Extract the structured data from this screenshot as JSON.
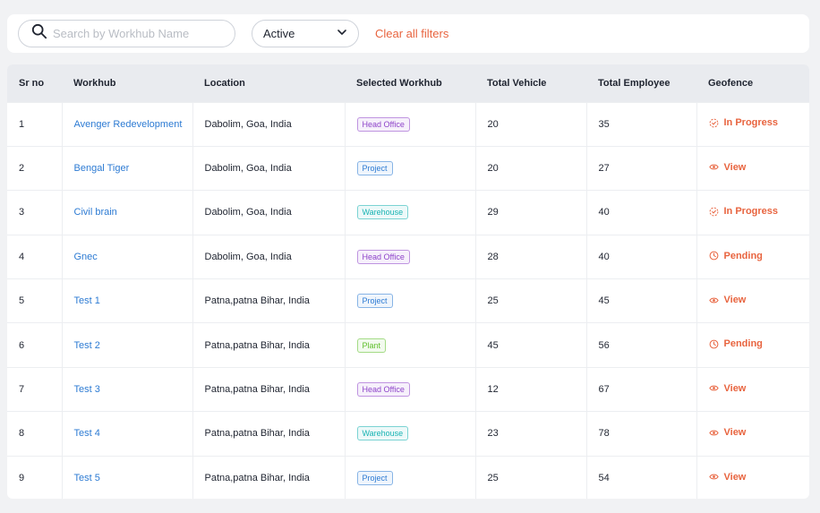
{
  "filters": {
    "search_placeholder": "Search by Workhub Name",
    "search_value": "",
    "status_selected": "Active",
    "clear_label": "Clear all filters"
  },
  "colors": {
    "accent": "#e8643f",
    "link": "#2d7bd3",
    "tag_head_office": "#8e44c9",
    "tag_project": "#2d7bd3",
    "tag_warehouse": "#19b3b3",
    "tag_plant": "#5fbf2c"
  },
  "table": {
    "headers": [
      "Sr no",
      "Workhub",
      "Location",
      "Selected Workhub",
      "Total Vehicle",
      "Total Employee",
      "Geofence"
    ],
    "rows": [
      {
        "sr": "1",
        "workhub": "Avenger Redevelopment",
        "location": "Dabolim, Goa, India",
        "type": "Head Office",
        "vehicles": "20",
        "employees": "35",
        "geofence": "In Progress",
        "geo_icon": "progress-icon"
      },
      {
        "sr": "2",
        "workhub": "Bengal Tiger",
        "location": "Dabolim, Goa, India",
        "type": "Project",
        "vehicles": "20",
        "employees": "27",
        "geofence": "View",
        "geo_icon": "eye-icon"
      },
      {
        "sr": "3",
        "workhub": "Civil brain",
        "location": "Dabolim, Goa, India",
        "type": "Warehouse",
        "vehicles": "29",
        "employees": "40",
        "geofence": "In Progress",
        "geo_icon": "progress-icon"
      },
      {
        "sr": "4",
        "workhub": "Gnec",
        "location": "Dabolim, Goa, India",
        "type": "Head Office",
        "vehicles": "28",
        "employees": "40",
        "geofence": "Pending",
        "geo_icon": "clock-icon"
      },
      {
        "sr": "5",
        "workhub": "Test 1",
        "location": "Patna,patna Bihar, India",
        "type": "Project",
        "vehicles": "25",
        "employees": "45",
        "geofence": "View",
        "geo_icon": "eye-icon"
      },
      {
        "sr": "6",
        "workhub": "Test 2",
        "location": "Patna,patna Bihar, India",
        "type": "Plant",
        "vehicles": "45",
        "employees": "56",
        "geofence": "Pending",
        "geo_icon": "clock-icon"
      },
      {
        "sr": "7",
        "workhub": "Test 3",
        "location": "Patna,patna Bihar, India",
        "type": "Head Office",
        "vehicles": "12",
        "employees": "67",
        "geofence": "View",
        "geo_icon": "eye-icon"
      },
      {
        "sr": "8",
        "workhub": "Test 4",
        "location": "Patna,patna Bihar, India",
        "type": "Warehouse",
        "vehicles": "23",
        "employees": "78",
        "geofence": "View",
        "geo_icon": "eye-icon"
      },
      {
        "sr": "9",
        "workhub": "Test 5",
        "location": "Patna,patna Bihar, India",
        "type": "Project",
        "vehicles": "25",
        "employees": "54",
        "geofence": "View",
        "geo_icon": "eye-icon"
      }
    ]
  }
}
